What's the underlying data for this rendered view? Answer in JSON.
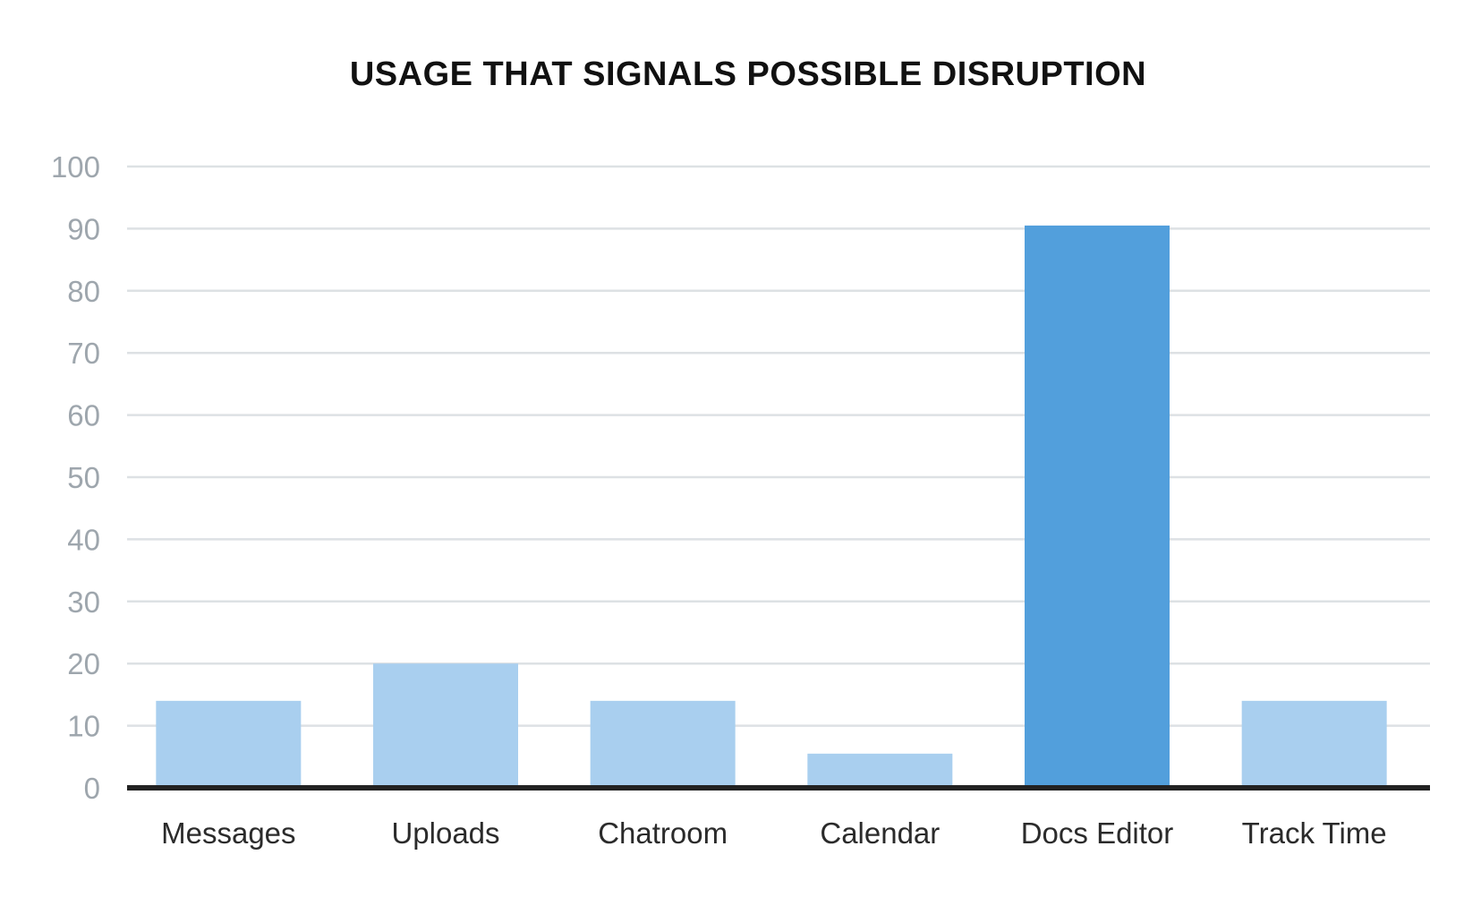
{
  "chart_data": {
    "type": "bar",
    "title": "USAGE THAT SIGNALS POSSIBLE DISRUPTION",
    "categories": [
      "Messages",
      "Uploads",
      "Chatroom",
      "Calendar",
      "Docs Editor",
      "Track Time"
    ],
    "values": [
      14,
      20,
      14,
      5.5,
      90.5,
      14
    ],
    "highlight_index": 4,
    "ylim": [
      0,
      100
    ],
    "yticks": [
      0,
      10,
      20,
      30,
      40,
      50,
      60,
      70,
      80,
      90,
      100
    ],
    "grid": true,
    "xlabel": "",
    "ylabel": "",
    "colors": {
      "bar": "#a9cfef",
      "highlight": "#529fdc",
      "grid": "#dde1e4",
      "axis": "#222222",
      "tick_text": "#9ea6ad",
      "label_text": "#2b2b2b"
    }
  }
}
